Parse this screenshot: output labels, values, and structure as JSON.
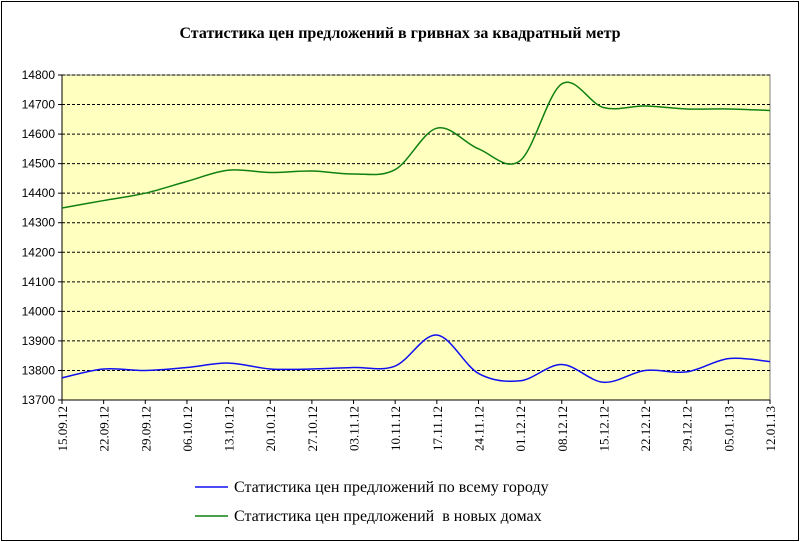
{
  "chart_data": {
    "type": "line",
    "title": "Статистика цен предложений в гривнах за квадратный метр",
    "xlabel": "",
    "ylabel": "",
    "ylim": [
      13700,
      14800
    ],
    "yticks": [
      13700,
      13800,
      13900,
      14000,
      14100,
      14200,
      14300,
      14400,
      14500,
      14600,
      14700,
      14800
    ],
    "categories": [
      "15.09.12",
      "22.09.12",
      "29.09.12",
      "06.10.12",
      "13.10.12",
      "20.10.12",
      "27.10.12",
      "03.11.12",
      "10.11.12",
      "17.11.12",
      "24.11.12",
      "01.12.12",
      "08.12.12",
      "15.12.12",
      "22.12.12",
      "29.12.12",
      "05.01.13",
      "12.01.13"
    ],
    "grid": "horizontal dashed",
    "legend": "bottom",
    "colors": {
      "plot_bg": "#FFFFC0",
      "city": "#1010F0",
      "new": "#108010"
    },
    "series": [
      {
        "name": "Статистика цен предложений по всему городу",
        "color": "#1010F0",
        "values": [
          13775,
          13805,
          13800,
          13810,
          13825,
          13805,
          13805,
          13810,
          13815,
          13920,
          13790,
          13765,
          13820,
          13760,
          13800,
          13795,
          13840,
          13830
        ]
      },
      {
        "name": "Статистика цен предложений  в новых домах",
        "color": "#108010",
        "values": [
          14350,
          14375,
          14400,
          14440,
          14478,
          14470,
          14475,
          14465,
          14480,
          14620,
          14550,
          14510,
          14770,
          14690,
          14695,
          14685,
          14685,
          14680
        ]
      }
    ]
  }
}
